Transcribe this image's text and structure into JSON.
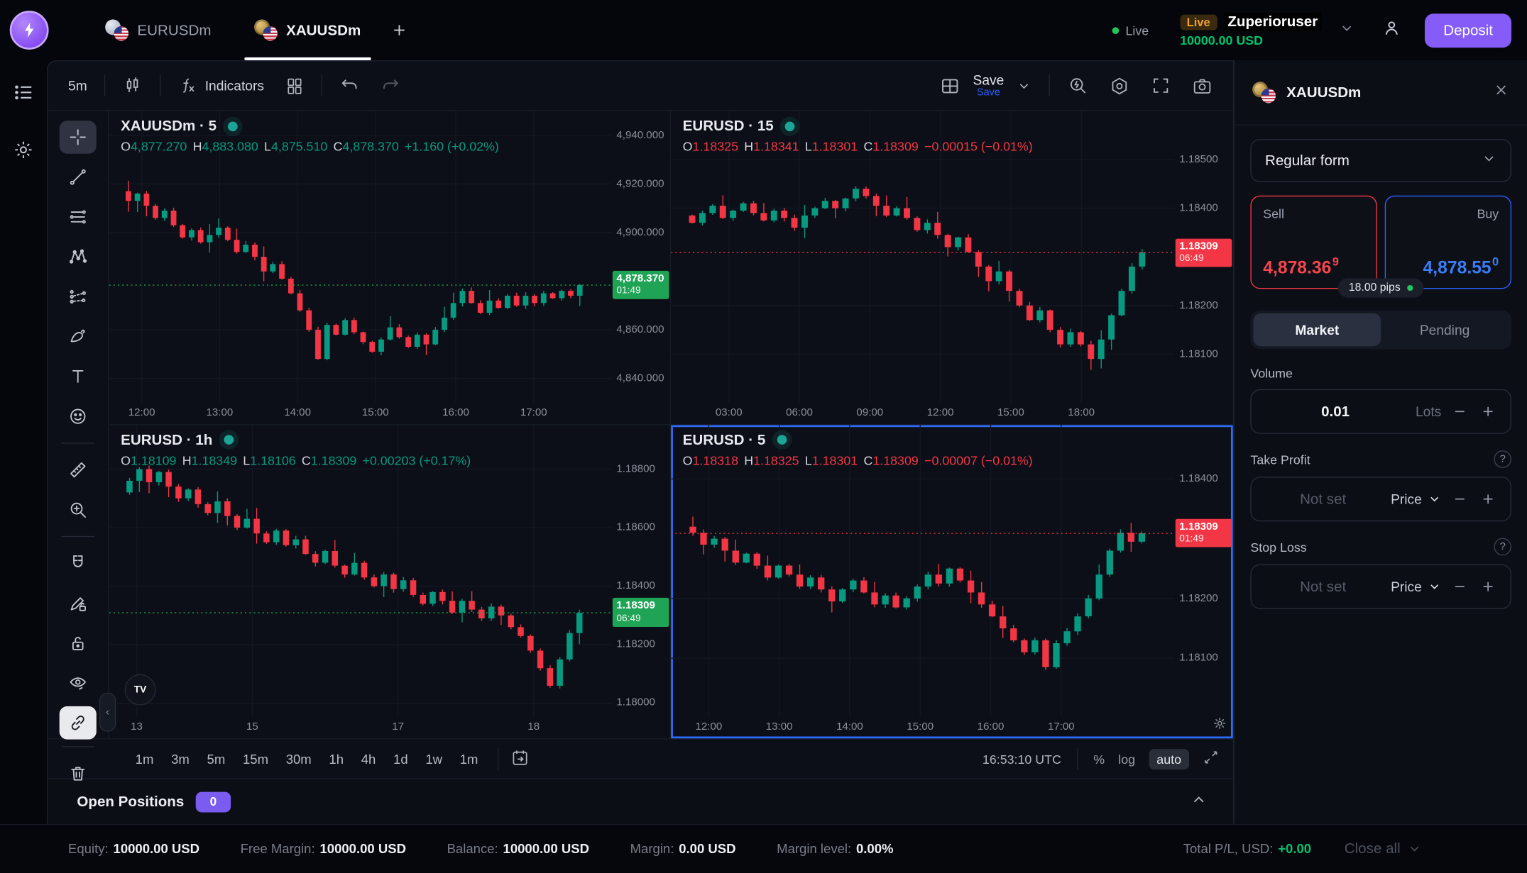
{
  "header": {
    "tabs": [
      {
        "label": "EURUSDm",
        "active": false
      },
      {
        "label": "XAUUSDm",
        "active": true
      }
    ],
    "live_label": "Live",
    "account": {
      "badge": "Live",
      "name": "Zuperioruser",
      "balance": "10000.00 USD"
    },
    "deposit_label": "Deposit"
  },
  "toolbar": {
    "timeframe": "5m",
    "indicators_label": "Indicators",
    "save_label": "Save",
    "save_sub": "Save"
  },
  "drawing_tools": [
    "crosshair",
    "trend-line",
    "horizontal-lines",
    "xabcd-pattern",
    "forecast",
    "brush",
    "text",
    "emoji",
    "divider",
    "ruler",
    "zoom-in",
    "divider",
    "magnet",
    "draw-lock",
    "lock-all",
    "eye-hide",
    "link",
    "divider",
    "trash"
  ],
  "colors": {
    "green": "#089981",
    "red": "#f23645",
    "blue": "#2962ff",
    "purple": "#855cf8",
    "tag_green": "#1fa355",
    "tag_red": "#f23645",
    "balance_green": "#00c46e",
    "live_orange": "#f0a028",
    "teal_dot": "#1ca497"
  },
  "bottom": {
    "timeframes": [
      "1m",
      "3m",
      "5m",
      "15m",
      "30m",
      "1h",
      "4h",
      "1d",
      "1w",
      "1m"
    ],
    "clock": "16:53:10 UTC",
    "toggles": {
      "percent": "%",
      "log": "log",
      "auto": "auto"
    }
  },
  "positions": {
    "title": "Open Positions",
    "count": "0"
  },
  "status": {
    "items": [
      {
        "label": "Equity:",
        "value": "10000.00 USD"
      },
      {
        "label": "Free Margin:",
        "value": "10000.00 USD"
      },
      {
        "label": "Balance:",
        "value": "10000.00 USD"
      },
      {
        "label": "Margin:",
        "value": "0.00 USD"
      },
      {
        "label": "Margin level:",
        "value": "0.00%"
      }
    ],
    "total_pl_label": "Total P/L, USD:",
    "total_pl_value": "+0.00",
    "close_all_label": "Close all"
  },
  "right_panel": {
    "symbol": "XAUUSDm",
    "form_select": "Regular form",
    "sell": {
      "label": "Sell",
      "price": "4,878.36",
      "sup": "9"
    },
    "buy": {
      "label": "Buy",
      "price": "4,878.55",
      "sup": "0"
    },
    "pips": "18.00 pips",
    "tabs": [
      "Market",
      "Pending"
    ],
    "volume": {
      "label": "Volume",
      "value": "0.01",
      "unit": "Lots"
    },
    "take_profit": {
      "label": "Take Profit",
      "placeholder": "Not set",
      "mode": "Price"
    },
    "stop_loss": {
      "label": "Stop Loss",
      "placeholder": "Not set",
      "mode": "Price"
    }
  },
  "chart_data": [
    {
      "type": "candlestick",
      "id": "xauusdm-5",
      "title": "XAUUSDm · 5",
      "dir": "up",
      "ohlc": {
        "o": "4,877.270",
        "h": "4,883.080",
        "l": "4,875.510",
        "c": "4,878.370",
        "change": "+1.160 (+0.02%)"
      },
      "y_max": 4950,
      "y_min": 4830,
      "y_ticks": [
        {
          "label": "4,940.000",
          "v": 4940
        },
        {
          "label": "4,920.000",
          "v": 4920
        },
        {
          "label": "4,900.000",
          "v": 4900
        },
        {
          "label": "4,860.000",
          "v": 4860
        },
        {
          "label": "4,840.000",
          "v": 4840
        }
      ],
      "x_labels": [
        {
          "label": "12:00",
          "p": 0.065
        },
        {
          "label": "13:00",
          "p": 0.22
        },
        {
          "label": "14:00",
          "p": 0.375
        },
        {
          "label": "15:00",
          "p": 0.53
        },
        {
          "label": "16:00",
          "p": 0.69
        },
        {
          "label": "17:00",
          "p": 0.845
        }
      ],
      "price": 4878.37,
      "price_label": "4,878.370",
      "countdown": "01:49",
      "closes": [
        4917,
        4913,
        4916,
        4911,
        4906,
        4909,
        4903,
        4898,
        4901,
        4896,
        4899,
        4902,
        4897,
        4892,
        4895,
        4890,
        4884,
        4887,
        4881,
        4875,
        4868,
        4860,
        4848,
        4862,
        4858,
        4864,
        4859,
        4855,
        4851,
        4856,
        4861,
        4857,
        4853,
        4858,
        4854,
        4860,
        4865,
        4871,
        4876,
        4871,
        4867,
        4872,
        4869,
        4874,
        4870,
        4874,
        4871,
        4875,
        4873,
        4876,
        4874,
        4878.37
      ]
    },
    {
      "type": "candlestick",
      "id": "eurusd-15",
      "title": "EURUSD · 15",
      "dir": "down",
      "ohlc": {
        "o": "1.18325",
        "h": "1.18341",
        "l": "1.18301",
        "c": "1.18309",
        "change": "−0.00015 (−0.01%)"
      },
      "y_max": 1.186,
      "y_min": 1.18,
      "y_ticks": [
        {
          "label": "1.18500",
          "v": 1.185
        },
        {
          "label": "1.18400",
          "v": 1.184
        },
        {
          "label": "1.18200",
          "v": 1.182
        },
        {
          "label": "1.18100",
          "v": 1.181
        }
      ],
      "x_labels": [
        {
          "label": "03:00",
          "p": 0.115
        },
        {
          "label": "06:00",
          "p": 0.255
        },
        {
          "label": "09:00",
          "p": 0.395
        },
        {
          "label": "12:00",
          "p": 0.535
        },
        {
          "label": "15:00",
          "p": 0.675
        },
        {
          "label": "18:00",
          "p": 0.815
        }
      ],
      "price": 1.18309,
      "price_label": "1.18309",
      "countdown": "06:49",
      "closes": [
        1.18385,
        1.1837,
        1.1839,
        1.18405,
        1.1838,
        1.18395,
        1.1841,
        1.1839,
        1.18375,
        1.18395,
        1.1838,
        1.1836,
        1.18385,
        1.184,
        1.18415,
        1.184,
        1.1842,
        1.1844,
        1.18425,
        1.18405,
        1.18385,
        1.184,
        1.1838,
        1.18355,
        1.1837,
        1.18345,
        1.1832,
        1.1834,
        1.1831,
        1.1828,
        1.1825,
        1.1827,
        1.1823,
        1.182,
        1.1817,
        1.1819,
        1.1815,
        1.1812,
        1.18145,
        1.1812,
        1.1809,
        1.1813,
        1.1818,
        1.1823,
        1.1828,
        1.18309
      ]
    },
    {
      "type": "candlestick",
      "id": "eurusd-1h",
      "title": "EURUSD · 1h",
      "dir": "up",
      "ohlc": {
        "o": "1.18109",
        "h": "1.18349",
        "l": "1.18106",
        "c": "1.18309",
        "change": "+0.00203 (+0.17%)"
      },
      "y_max": 1.1895,
      "y_min": 1.1795,
      "y_ticks": [
        {
          "label": "1.18800",
          "v": 1.188
        },
        {
          "label": "1.18600",
          "v": 1.186
        },
        {
          "label": "1.18400",
          "v": 1.184
        },
        {
          "label": "1.18200",
          "v": 1.182
        },
        {
          "label": "1.18000",
          "v": 1.18
        }
      ],
      "x_labels": [
        {
          "label": "13",
          "p": 0.055
        },
        {
          "label": "15",
          "p": 0.285
        },
        {
          "label": "17",
          "p": 0.575
        },
        {
          "label": "18",
          "p": 0.845
        }
      ],
      "price": 1.18309,
      "price_label": "1.18309",
      "countdown": "06:49",
      "closes": [
        1.1872,
        1.1876,
        1.188,
        1.18755,
        1.1879,
        1.1874,
        1.187,
        1.1873,
        1.1868,
        1.1865,
        1.1869,
        1.1864,
        1.186,
        1.1863,
        1.1858,
        1.1855,
        1.1859,
        1.1854,
        1.1856,
        1.1851,
        1.1848,
        1.1852,
        1.1847,
        1.1844,
        1.1848,
        1.1843,
        1.184,
        1.1844,
        1.1839,
        1.1842,
        1.1837,
        1.1834,
        1.1838,
        1.1835,
        1.1831,
        1.1835,
        1.1832,
        1.1829,
        1.1833,
        1.183,
        1.1826,
        1.1823,
        1.1818,
        1.1812,
        1.1806,
        1.1815,
        1.1824,
        1.18309
      ],
      "show_tv_logo": true
    },
    {
      "type": "candlestick",
      "id": "eurusd-5",
      "title": "EURUSD · 5",
      "dir": "down",
      "selected": true,
      "ohlc": {
        "o": "1.18318",
        "h": "1.18325",
        "l": "1.18301",
        "c": "1.18309",
        "change": "−0.00007 (−0.01%)"
      },
      "y_max": 1.1849,
      "y_min": 1.18,
      "y_ticks": [
        {
          "label": "1.18400",
          "v": 1.184
        },
        {
          "label": "1.18200",
          "v": 1.182
        },
        {
          "label": "1.18100",
          "v": 1.181
        }
      ],
      "x_labels": [
        {
          "label": "12:00",
          "p": 0.075
        },
        {
          "label": "13:00",
          "p": 0.215
        },
        {
          "label": "14:00",
          "p": 0.355
        },
        {
          "label": "15:00",
          "p": 0.495
        },
        {
          "label": "16:00",
          "p": 0.635
        },
        {
          "label": "17:00",
          "p": 0.775
        }
      ],
      "price": 1.18309,
      "price_label": "1.18309",
      "countdown": "01:49",
      "closes": [
        1.1832,
        1.1831,
        1.1829,
        1.183,
        1.1828,
        1.1826,
        1.18275,
        1.18255,
        1.18235,
        1.18255,
        1.1824,
        1.1822,
        1.18235,
        1.18215,
        1.18195,
        1.18215,
        1.1823,
        1.1821,
        1.1819,
        1.18205,
        1.18185,
        1.182,
        1.1822,
        1.1824,
        1.18225,
        1.1825,
        1.1823,
        1.1821,
        1.1819,
        1.1817,
        1.1815,
        1.1813,
        1.1811,
        1.1813,
        1.18085,
        1.18125,
        1.18145,
        1.1817,
        1.182,
        1.1824,
        1.1828,
        1.1831,
        1.18295,
        1.18309
      ],
      "show_gear": true
    }
  ]
}
